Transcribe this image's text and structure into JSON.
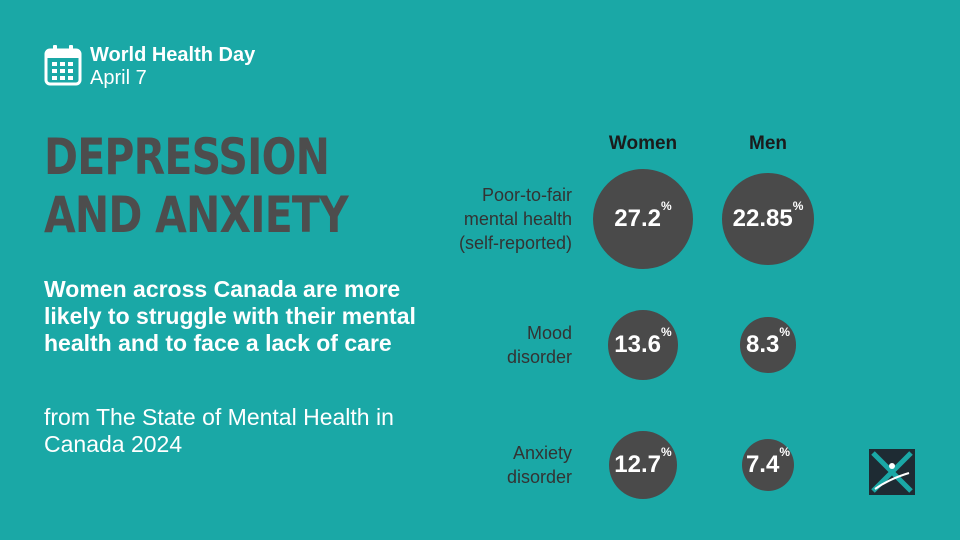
{
  "header": {
    "title": "World Health Day",
    "date": "April 7",
    "icon": "calendar-icon"
  },
  "headline": {
    "line1": "DEPRESSION",
    "line2": "AND ANXIETY"
  },
  "subhead": "Women across Canada are more likely to struggle with their mental health and to face a lack of care",
  "source": "from The State of Mental Health in Canada 2024",
  "colors": {
    "background": "#1aa8a6",
    "bubble": "#4a4a4a",
    "headline": "#4d4d4d"
  },
  "logo": "organization-logo",
  "chart_data": {
    "type": "bubble",
    "title": "",
    "columns": [
      "Women",
      "Men"
    ],
    "unit": "%",
    "rows": [
      {
        "label_lines": [
          "Poor-to-fair",
          "mental health",
          "(self-reported)"
        ],
        "label": "Poor-to-fair mental health (self-reported)",
        "values": [
          27.2,
          22.85
        ],
        "display": [
          "27.2",
          "22.85"
        ]
      },
      {
        "label_lines": [
          "Mood",
          "disorder"
        ],
        "label": "Mood disorder",
        "values": [
          13.6,
          8.3
        ],
        "display": [
          "13.6",
          "8.3"
        ]
      },
      {
        "label_lines": [
          "Anxiety",
          "disorder"
        ],
        "label": "Anxiety disorder",
        "values": [
          12.7,
          7.4
        ],
        "display": [
          "12.7",
          "7.4"
        ]
      }
    ]
  }
}
